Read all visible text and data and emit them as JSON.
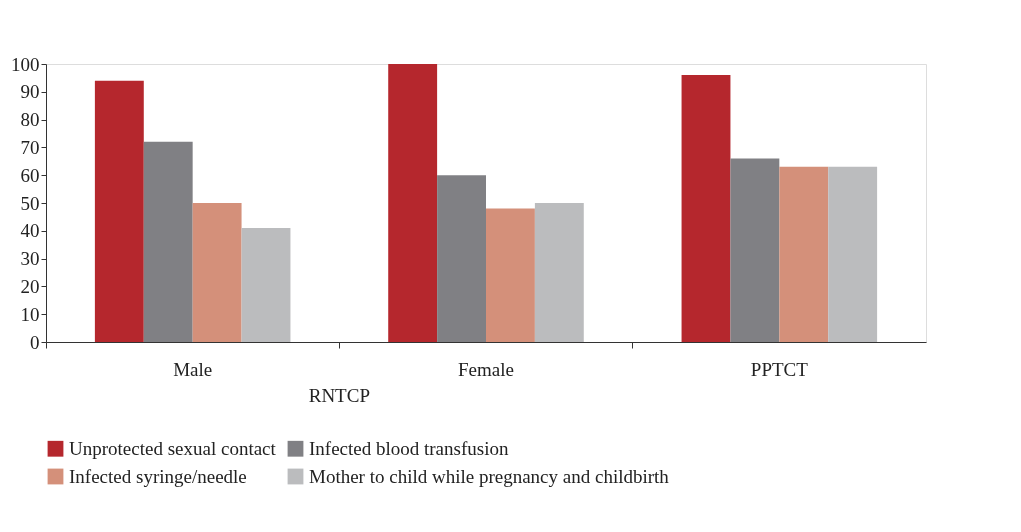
{
  "chart_data": {
    "type": "bar",
    "categories": [
      "Male",
      "Female",
      "PPTCT"
    ],
    "series": [
      {
        "name": "Unprotected sexual contact",
        "color": "#b5272d",
        "values": [
          94,
          100,
          96
        ]
      },
      {
        "name": "Infected blood transfusion",
        "color": "#808084",
        "values": [
          72,
          60,
          66
        ]
      },
      {
        "name": "Infected syringe/needle",
        "color": "#d4907a",
        "values": [
          50,
          48,
          63
        ]
      },
      {
        "name": "Mother to child while pregnancy and childbirth",
        "color": "#bbbcbe",
        "values": [
          41,
          50,
          63
        ]
      }
    ],
    "ylim": [
      0,
      100
    ],
    "yticks": [
      0,
      10,
      20,
      30,
      40,
      50,
      60,
      70,
      80,
      90,
      100
    ],
    "annotations": [
      "RNTCP"
    ],
    "grid": false,
    "legend": "bottom"
  }
}
